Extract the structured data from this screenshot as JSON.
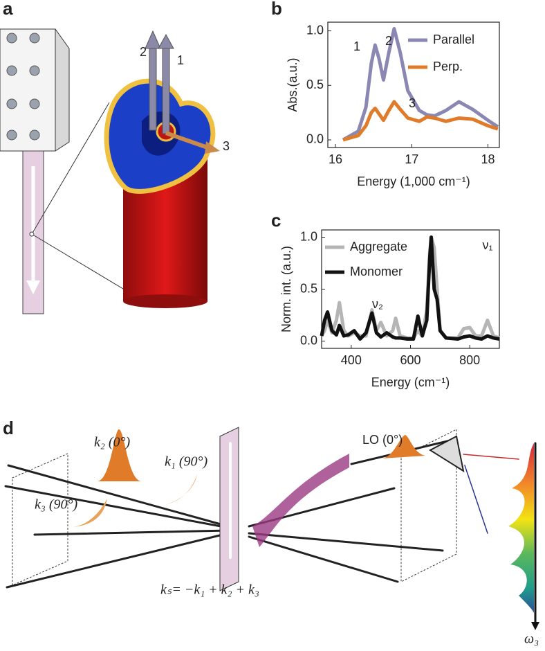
{
  "panel_labels": [
    "a",
    "b",
    "c",
    "d"
  ],
  "diagram_a": {
    "arrow_labels": [
      "2",
      "1",
      "3"
    ]
  },
  "chart_data": [
    {
      "type": "line",
      "xlabel": "Energy (1,000 cm⁻¹)",
      "ylabel": "Abs.(a.u.)",
      "xlim": [
        15.9,
        18.15
      ],
      "ylim": [
        -0.07,
        1.08
      ],
      "xticks": [
        16,
        17,
        18
      ],
      "yticks": [
        {
          "value": 0,
          "label": "0.0"
        },
        0.5,
        {
          "value": 1,
          "label": "1.0"
        }
      ],
      "x": [
        16.1,
        16.3,
        16.4,
        16.47,
        16.52,
        16.57,
        16.63,
        16.7,
        16.77,
        16.85,
        16.95,
        17.1,
        17.2,
        17.3,
        17.45,
        17.62,
        17.8,
        18.0,
        18.13
      ],
      "series": [
        {
          "name": "Parallel",
          "color": "#8b87b3",
          "values": [
            0.0,
            0.08,
            0.3,
            0.7,
            0.87,
            0.75,
            0.55,
            0.8,
            1.02,
            0.8,
            0.45,
            0.27,
            0.23,
            0.22,
            0.27,
            0.35,
            0.28,
            0.18,
            0.12
          ]
        },
        {
          "name": "Perp.",
          "color": "#e07b2a",
          "values": [
            0.0,
            0.04,
            0.13,
            0.25,
            0.29,
            0.24,
            0.18,
            0.27,
            0.35,
            0.28,
            0.2,
            0.17,
            0.21,
            0.2,
            0.17,
            0.2,
            0.19,
            0.13,
            0.1
          ]
        }
      ],
      "annotations": [
        "1",
        "2",
        "3"
      ]
    },
    {
      "type": "line",
      "xlabel": "Energy (cm⁻¹)",
      "ylabel": "Norm. int. (a.u.)",
      "xlim": [
        300,
        900
      ],
      "ylim": [
        -0.07,
        1.07
      ],
      "xticks": [
        400,
        600,
        800
      ],
      "yticks": [
        {
          "value": 0,
          "label": "0.0"
        },
        0.5,
        {
          "value": 1,
          "label": "1.0"
        }
      ],
      "x": [
        300,
        310,
        320,
        335,
        350,
        360,
        375,
        390,
        410,
        430,
        450,
        470,
        485,
        500,
        520,
        540,
        550,
        565,
        590,
        610,
        625,
        640,
        655,
        665,
        670,
        680,
        690,
        700,
        720,
        760,
        780,
        800,
        820,
        840,
        860,
        880,
        900
      ],
      "series": [
        {
          "name": "Aggregate",
          "color": "#b5b5b5",
          "values": [
            0.05,
            0.1,
            0.2,
            0.08,
            0.2,
            0.37,
            0.1,
            0.05,
            0.08,
            0.05,
            0.05,
            0.3,
            0.1,
            0.18,
            0.05,
            0.1,
            0.22,
            0.05,
            0.03,
            0.03,
            0.1,
            0.05,
            0.3,
            0.85,
            1.0,
            0.9,
            0.5,
            0.1,
            0.03,
            0.03,
            0.12,
            0.13,
            0.05,
            0.05,
            0.2,
            0.05,
            0.03
          ]
        },
        {
          "name": "Monomer",
          "color": "#111111",
          "values": [
            0.05,
            0.2,
            0.28,
            0.1,
            0.06,
            0.15,
            0.05,
            0.06,
            0.1,
            0.02,
            0.08,
            0.27,
            0.08,
            0.04,
            0.08,
            0.04,
            0.03,
            0.03,
            0.02,
            0.02,
            0.24,
            0.05,
            0.2,
            0.8,
            1.0,
            0.5,
            0.4,
            0.1,
            0.03,
            0.02,
            0.04,
            0.05,
            0.03,
            0.02,
            0.05,
            0.03,
            0.02
          ]
        }
      ],
      "annotations": [
        "ν₁",
        "ν₂"
      ]
    }
  ],
  "diagram_d": {
    "labels": [
      "k₂ (0°)",
      "k₁ (90°)",
      "k₃ (90°)",
      "LO (0°)",
      "kₛ= −k₁ + k₂ + k₃",
      "ω₃"
    ]
  }
}
